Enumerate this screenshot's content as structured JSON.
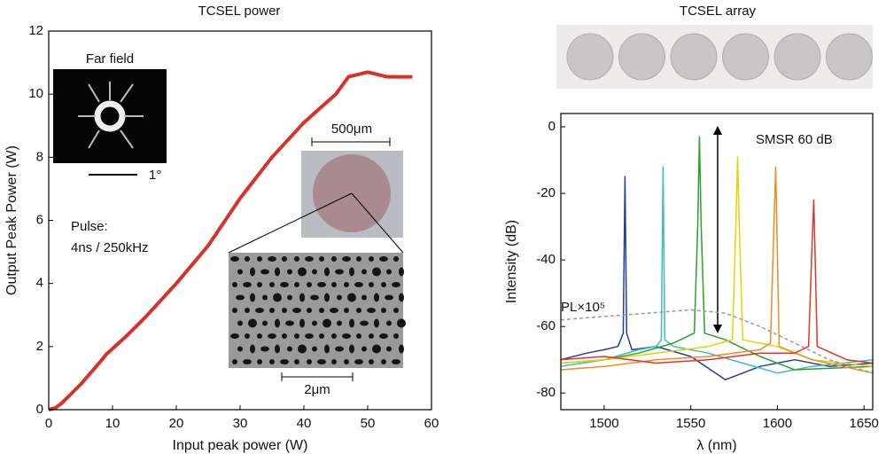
{
  "chart_data": [
    {
      "type": "line",
      "title": "TCSEL power",
      "x_label": "Input peak power (W)",
      "y_label": "Output Peak Power (W)",
      "xlim": [
        0,
        60
      ],
      "xticks": [
        0,
        10,
        20,
        30,
        40,
        50,
        60
      ],
      "ylim": [
        0,
        12
      ],
      "yticks": [
        0,
        2,
        4,
        6,
        8,
        10,
        12
      ],
      "x": [
        0,
        1,
        2,
        5,
        8,
        9,
        12,
        15,
        20,
        25,
        30,
        35,
        40,
        45,
        47,
        50,
        53,
        57
      ],
      "series": [
        {
          "color": "#d9302a",
          "values": [
            0,
            0.05,
            0.2,
            0.8,
            1.5,
            1.75,
            2.3,
            2.9,
            4.0,
            5.2,
            6.7,
            8.0,
            9.1,
            10.0,
            10.55,
            10.7,
            10.55,
            10.55
          ]
        }
      ],
      "annotations": [
        "Far field",
        "1°",
        "500μm",
        "2μm",
        "Pulse:",
        "4ns / 250kHz"
      ]
    },
    {
      "type": "line",
      "title": "TCSEL array",
      "x_label": "λ (nm)",
      "y_label": "Intensity (dB)",
      "xlim": [
        1475,
        1655
      ],
      "xticks": [
        1500,
        1550,
        1600,
        1650
      ],
      "ylim": [
        -85,
        4
      ],
      "yticks": [
        -80,
        -60,
        -40,
        -20,
        0
      ],
      "series": [
        {
          "color": "#1f3f9f",
          "x": [
            1475,
            1490,
            1500,
            1508,
            1511,
            1512,
            1513,
            1516,
            1530,
            1550,
            1570,
            1590,
            1610,
            1630,
            1655
          ],
          "values": [
            -70,
            -68,
            -67,
            -66,
            -62,
            -15,
            -62,
            -67,
            -66,
            -69,
            -76,
            -72,
            -70,
            -72,
            -71
          ]
        },
        {
          "color": "#3cbcc0",
          "x": [
            1475,
            1500,
            1520,
            1530,
            1533,
            1534,
            1535,
            1540,
            1560,
            1580,
            1600,
            1620,
            1655
          ],
          "values": [
            -72,
            -70,
            -67,
            -66,
            -64,
            -12,
            -64,
            -66,
            -68,
            -71,
            -74,
            -72,
            -70
          ]
        },
        {
          "color": "#2ca02c",
          "x": [
            1475,
            1500,
            1520,
            1540,
            1552,
            1554,
            1555,
            1556,
            1558,
            1570,
            1590,
            1610,
            1655
          ],
          "values": [
            -71,
            -70,
            -68,
            -65,
            -62,
            -30,
            -3,
            -30,
            -62,
            -64,
            -69,
            -73,
            -72
          ]
        },
        {
          "color": "#e3d400",
          "x": [
            1475,
            1500,
            1530,
            1560,
            1574,
            1576,
            1577,
            1578,
            1580,
            1600,
            1620,
            1655
          ],
          "values": [
            -71,
            -70,
            -68,
            -66,
            -64,
            -30,
            -9,
            -30,
            -64,
            -66,
            -70,
            -72
          ]
        },
        {
          "color": "#f08a24",
          "x": [
            1475,
            1500,
            1530,
            1560,
            1590,
            1596,
            1598,
            1599,
            1601,
            1620,
            1655
          ],
          "values": [
            -73,
            -72,
            -70,
            -69,
            -67,
            -65,
            -30,
            -12,
            -66,
            -70,
            -74
          ]
        },
        {
          "color": "#e0352b",
          "x": [
            1475,
            1500,
            1530,
            1560,
            1590,
            1610,
            1618,
            1620,
            1621,
            1623,
            1640,
            1655
          ],
          "values": [
            -70,
            -69,
            -71,
            -70,
            -68,
            -68,
            -66,
            -35,
            -22,
            -66,
            -70,
            -71
          ]
        },
        {
          "color": "#999999",
          "style": "dashed",
          "x": [
            1475,
            1500,
            1525,
            1550,
            1570,
            1590,
            1610,
            1630,
            1655
          ],
          "values": [
            -58,
            -57,
            -56,
            -55,
            -56,
            -60,
            -65,
            -70,
            -74
          ]
        }
      ],
      "annotations": [
        "SMSR 60 dB",
        "PL×10⁵"
      ]
    }
  ]
}
